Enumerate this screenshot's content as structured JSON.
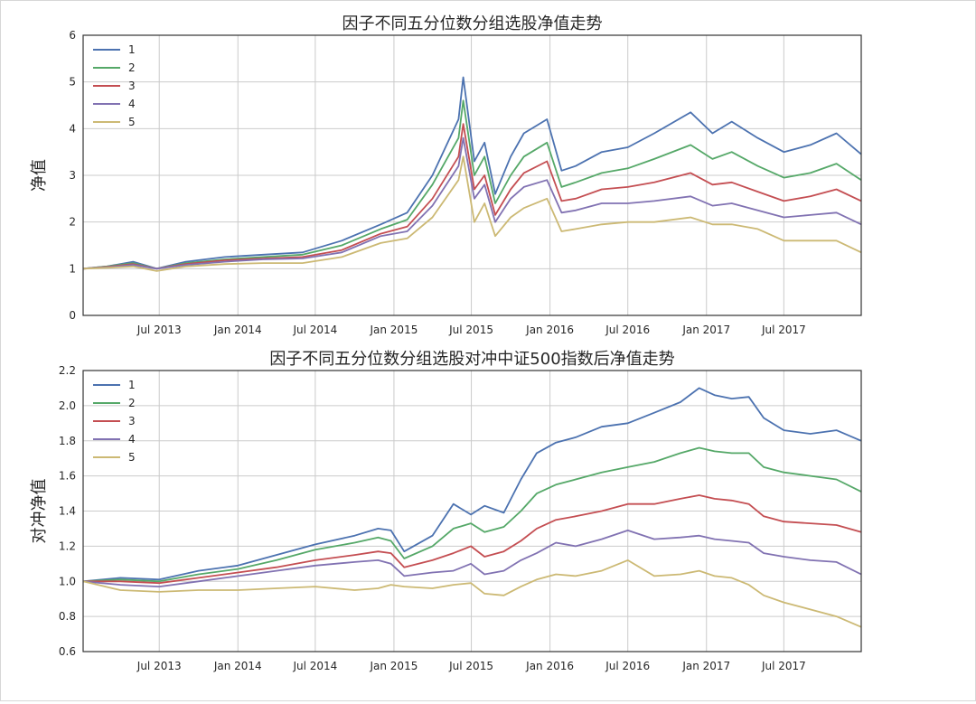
{
  "colors": {
    "series": [
      "#4c72b0",
      "#55a868",
      "#c44e52",
      "#8172b2",
      "#ccb974"
    ],
    "grid": "#cbcbcb",
    "axis": "#333333",
    "text": "#262626"
  },
  "chart_data": [
    {
      "type": "line",
      "title": "因子不同五分位数分组选股净值走势",
      "xlabel": "",
      "ylabel": "净值",
      "xlim": [
        "2013-01-04",
        "2017-12-29"
      ],
      "ylim": [
        0,
        6
      ],
      "yticks": [
        "0",
        "1",
        "2",
        "3",
        "4",
        "5",
        "6"
      ],
      "xticks": [
        {
          "date": "2013-07-01",
          "label": "Jul 2013"
        },
        {
          "date": "2014-01-01",
          "label": "Jan 2014"
        },
        {
          "date": "2014-07-01",
          "label": "Jul 2014"
        },
        {
          "date": "2015-01-01",
          "label": "Jan 2015"
        },
        {
          "date": "2015-07-01",
          "label": "Jul 2015"
        },
        {
          "date": "2016-01-01",
          "label": "Jan 2016"
        },
        {
          "date": "2016-07-01",
          "label": "Jul 2016"
        },
        {
          "date": "2017-01-01",
          "label": "Jan 2017"
        },
        {
          "date": "2017-07-01",
          "label": "Jul 2017"
        }
      ],
      "grid": true,
      "legend": "top-left",
      "series": [
        {
          "name": "1",
          "x": [
            "2013-01-04",
            "2013-03-01",
            "2013-05-01",
            "2013-06-25",
            "2013-09-01",
            "2013-12-01",
            "2014-03-01",
            "2014-06-01",
            "2014-09-01",
            "2014-12-01",
            "2015-02-01",
            "2015-04-01",
            "2015-06-01",
            "2015-06-12",
            "2015-07-08",
            "2015-08-01",
            "2015-08-26",
            "2015-10-01",
            "2015-11-01",
            "2015-12-25",
            "2016-01-28",
            "2016-03-01",
            "2016-05-01",
            "2016-07-01",
            "2016-09-01",
            "2016-11-25",
            "2017-01-15",
            "2017-03-01",
            "2017-05-01",
            "2017-07-01",
            "2017-09-01",
            "2017-11-01",
            "2017-12-29"
          ],
          "values": [
            1.0,
            1.05,
            1.15,
            1.0,
            1.15,
            1.25,
            1.3,
            1.35,
            1.6,
            1.95,
            2.2,
            3.0,
            4.2,
            5.1,
            3.3,
            3.7,
            2.6,
            3.4,
            3.9,
            4.2,
            3.1,
            3.2,
            3.5,
            3.6,
            3.9,
            4.35,
            3.9,
            4.15,
            3.8,
            3.5,
            3.65,
            3.9,
            3.45
          ]
        },
        {
          "name": "2",
          "x": [
            "2013-01-04",
            "2013-03-01",
            "2013-05-01",
            "2013-06-25",
            "2013-09-01",
            "2013-12-01",
            "2014-03-01",
            "2014-06-01",
            "2014-09-01",
            "2014-12-01",
            "2015-02-01",
            "2015-04-01",
            "2015-06-01",
            "2015-06-12",
            "2015-07-08",
            "2015-08-01",
            "2015-08-26",
            "2015-10-01",
            "2015-11-01",
            "2015-12-25",
            "2016-01-28",
            "2016-03-01",
            "2016-05-01",
            "2016-07-01",
            "2016-09-01",
            "2016-11-25",
            "2017-01-15",
            "2017-03-01",
            "2017-05-01",
            "2017-07-01",
            "2017-09-01",
            "2017-11-01",
            "2017-12-29"
          ],
          "values": [
            1.0,
            1.05,
            1.12,
            1.0,
            1.12,
            1.2,
            1.25,
            1.3,
            1.5,
            1.85,
            2.05,
            2.8,
            3.8,
            4.6,
            3.0,
            3.4,
            2.4,
            3.0,
            3.4,
            3.7,
            2.75,
            2.85,
            3.05,
            3.15,
            3.35,
            3.65,
            3.35,
            3.5,
            3.2,
            2.95,
            3.05,
            3.25,
            2.9
          ]
        },
        {
          "name": "3",
          "x": [
            "2013-01-04",
            "2013-03-01",
            "2013-05-01",
            "2013-06-25",
            "2013-09-01",
            "2013-12-01",
            "2014-03-01",
            "2014-06-01",
            "2014-09-01",
            "2014-12-01",
            "2015-02-01",
            "2015-04-01",
            "2015-06-01",
            "2015-06-12",
            "2015-07-08",
            "2015-08-01",
            "2015-08-26",
            "2015-10-01",
            "2015-11-01",
            "2015-12-25",
            "2016-01-28",
            "2016-03-01",
            "2016-05-01",
            "2016-07-01",
            "2016-09-01",
            "2016-11-25",
            "2017-01-15",
            "2017-03-01",
            "2017-05-01",
            "2017-07-01",
            "2017-09-01",
            "2017-11-01",
            "2017-12-29"
          ],
          "values": [
            1.0,
            1.04,
            1.1,
            1.0,
            1.1,
            1.18,
            1.22,
            1.25,
            1.4,
            1.75,
            1.9,
            2.5,
            3.4,
            4.1,
            2.7,
            3.0,
            2.15,
            2.7,
            3.05,
            3.3,
            2.45,
            2.5,
            2.7,
            2.75,
            2.85,
            3.05,
            2.8,
            2.85,
            2.65,
            2.45,
            2.55,
            2.7,
            2.45
          ]
        },
        {
          "name": "4",
          "x": [
            "2013-01-04",
            "2013-03-01",
            "2013-05-01",
            "2013-06-25",
            "2013-09-01",
            "2013-12-01",
            "2014-03-01",
            "2014-06-01",
            "2014-09-01",
            "2014-12-01",
            "2015-02-01",
            "2015-04-01",
            "2015-06-01",
            "2015-06-12",
            "2015-07-08",
            "2015-08-01",
            "2015-08-26",
            "2015-10-01",
            "2015-11-01",
            "2015-12-25",
            "2016-01-28",
            "2016-03-01",
            "2016-05-01",
            "2016-07-01",
            "2016-09-01",
            "2016-11-25",
            "2017-01-15",
            "2017-03-01",
            "2017-05-01",
            "2017-07-01",
            "2017-09-01",
            "2017-11-01",
            "2017-12-29"
          ],
          "values": [
            1.0,
            1.03,
            1.08,
            1.0,
            1.08,
            1.15,
            1.2,
            1.22,
            1.35,
            1.7,
            1.8,
            2.35,
            3.2,
            3.8,
            2.5,
            2.8,
            2.0,
            2.5,
            2.75,
            2.9,
            2.2,
            2.25,
            2.4,
            2.4,
            2.45,
            2.55,
            2.35,
            2.4,
            2.25,
            2.1,
            2.15,
            2.2,
            1.95
          ]
        },
        {
          "name": "5",
          "x": [
            "2013-01-04",
            "2013-03-01",
            "2013-05-01",
            "2013-06-25",
            "2013-09-01",
            "2013-12-01",
            "2014-03-01",
            "2014-06-01",
            "2014-09-01",
            "2014-12-01",
            "2015-02-01",
            "2015-04-01",
            "2015-06-01",
            "2015-06-12",
            "2015-07-08",
            "2015-08-01",
            "2015-08-26",
            "2015-10-01",
            "2015-11-01",
            "2015-12-25",
            "2016-01-28",
            "2016-03-01",
            "2016-05-01",
            "2016-07-01",
            "2016-09-01",
            "2016-11-25",
            "2017-01-15",
            "2017-03-01",
            "2017-05-01",
            "2017-07-01",
            "2017-09-01",
            "2017-11-01",
            "2017-12-29"
          ],
          "values": [
            1.0,
            1.02,
            1.05,
            0.95,
            1.05,
            1.1,
            1.12,
            1.12,
            1.25,
            1.55,
            1.65,
            2.1,
            2.9,
            3.4,
            2.0,
            2.4,
            1.7,
            2.1,
            2.3,
            2.5,
            1.8,
            1.85,
            1.95,
            2.0,
            2.0,
            2.1,
            1.95,
            1.95,
            1.85,
            1.6,
            1.6,
            1.6,
            1.35
          ]
        }
      ]
    },
    {
      "type": "line",
      "title": "因子不同五分位数分组选股对冲中证500指数后净值走势",
      "xlabel": "",
      "ylabel": "对冲净值",
      "xlim": [
        "2013-01-04",
        "2017-12-29"
      ],
      "ylim": [
        0.6,
        2.2
      ],
      "yticks": [
        "0.6",
        "0.8",
        "1.0",
        "1.2",
        "1.4",
        "1.6",
        "1.8",
        "2.0",
        "2.2"
      ],
      "xticks": [
        {
          "date": "2013-07-01",
          "label": "Jul 2013"
        },
        {
          "date": "2014-01-01",
          "label": "Jan 2014"
        },
        {
          "date": "2014-07-01",
          "label": "Jul 2014"
        },
        {
          "date": "2015-01-01",
          "label": "Jan 2015"
        },
        {
          "date": "2015-07-01",
          "label": "Jul 2015"
        },
        {
          "date": "2016-01-01",
          "label": "Jan 2016"
        },
        {
          "date": "2016-07-01",
          "label": "Jul 2016"
        },
        {
          "date": "2017-01-01",
          "label": "Jan 2017"
        },
        {
          "date": "2017-07-01",
          "label": "Jul 2017"
        }
      ],
      "grid": true,
      "legend": "top-left",
      "series": [
        {
          "name": "1",
          "x": [
            "2013-01-04",
            "2013-04-01",
            "2013-07-01",
            "2013-10-01",
            "2014-01-01",
            "2014-04-01",
            "2014-07-01",
            "2014-10-01",
            "2014-11-25",
            "2014-12-25",
            "2015-01-25",
            "2015-04-01",
            "2015-05-20",
            "2015-06-30",
            "2015-08-01",
            "2015-09-15",
            "2015-10-25",
            "2015-12-01",
            "2016-01-15",
            "2016-03-01",
            "2016-05-01",
            "2016-07-01",
            "2016-09-01",
            "2016-11-01",
            "2016-12-15",
            "2017-01-20",
            "2017-03-01",
            "2017-04-10",
            "2017-05-15",
            "2017-07-01",
            "2017-09-01",
            "2017-11-01",
            "2017-12-29"
          ],
          "values": [
            1.0,
            1.02,
            1.01,
            1.06,
            1.09,
            1.15,
            1.21,
            1.26,
            1.3,
            1.29,
            1.17,
            1.26,
            1.44,
            1.38,
            1.43,
            1.39,
            1.58,
            1.73,
            1.79,
            1.82,
            1.88,
            1.9,
            1.96,
            2.02,
            2.1,
            2.06,
            2.04,
            2.05,
            1.93,
            1.86,
            1.84,
            1.86,
            1.8
          ]
        },
        {
          "name": "2",
          "x": [
            "2013-01-04",
            "2013-04-01",
            "2013-07-01",
            "2013-10-01",
            "2014-01-01",
            "2014-04-01",
            "2014-07-01",
            "2014-10-01",
            "2014-11-25",
            "2014-12-25",
            "2015-01-25",
            "2015-04-01",
            "2015-05-20",
            "2015-06-30",
            "2015-08-01",
            "2015-09-15",
            "2015-10-25",
            "2015-12-01",
            "2016-01-15",
            "2016-03-01",
            "2016-05-01",
            "2016-07-01",
            "2016-09-01",
            "2016-11-01",
            "2016-12-15",
            "2017-01-20",
            "2017-03-01",
            "2017-04-10",
            "2017-05-15",
            "2017-07-01",
            "2017-09-01",
            "2017-11-01",
            "2017-12-29"
          ],
          "values": [
            1.0,
            1.01,
            1.0,
            1.04,
            1.07,
            1.12,
            1.18,
            1.22,
            1.25,
            1.23,
            1.13,
            1.2,
            1.3,
            1.33,
            1.28,
            1.31,
            1.4,
            1.5,
            1.55,
            1.58,
            1.62,
            1.65,
            1.68,
            1.73,
            1.76,
            1.74,
            1.73,
            1.73,
            1.65,
            1.62,
            1.6,
            1.58,
            1.51
          ]
        },
        {
          "name": "3",
          "x": [
            "2013-01-04",
            "2013-04-01",
            "2013-07-01",
            "2013-10-01",
            "2014-01-01",
            "2014-04-01",
            "2014-07-01",
            "2014-10-01",
            "2014-11-25",
            "2014-12-25",
            "2015-01-25",
            "2015-04-01",
            "2015-05-20",
            "2015-06-30",
            "2015-08-01",
            "2015-09-15",
            "2015-10-25",
            "2015-12-01",
            "2016-01-15",
            "2016-03-01",
            "2016-05-01",
            "2016-07-01",
            "2016-09-01",
            "2016-11-01",
            "2016-12-15",
            "2017-01-20",
            "2017-03-01",
            "2017-04-10",
            "2017-05-15",
            "2017-07-01",
            "2017-09-01",
            "2017-11-01",
            "2017-12-29"
          ],
          "values": [
            1.0,
            1.0,
            0.99,
            1.02,
            1.05,
            1.08,
            1.12,
            1.15,
            1.17,
            1.16,
            1.08,
            1.12,
            1.16,
            1.2,
            1.14,
            1.17,
            1.23,
            1.3,
            1.35,
            1.37,
            1.4,
            1.44,
            1.44,
            1.47,
            1.49,
            1.47,
            1.46,
            1.44,
            1.37,
            1.34,
            1.33,
            1.32,
            1.28
          ]
        },
        {
          "name": "4",
          "x": [
            "2013-01-04",
            "2013-04-01",
            "2013-07-01",
            "2013-10-01",
            "2014-01-01",
            "2014-04-01",
            "2014-07-01",
            "2014-10-01",
            "2014-11-25",
            "2014-12-25",
            "2015-01-25",
            "2015-04-01",
            "2015-05-20",
            "2015-06-30",
            "2015-08-01",
            "2015-09-15",
            "2015-10-25",
            "2015-12-01",
            "2016-01-15",
            "2016-03-01",
            "2016-05-01",
            "2016-07-01",
            "2016-09-01",
            "2016-11-01",
            "2016-12-15",
            "2017-01-20",
            "2017-03-01",
            "2017-04-10",
            "2017-05-15",
            "2017-07-01",
            "2017-09-01",
            "2017-11-01",
            "2017-12-29"
          ],
          "values": [
            1.0,
            0.98,
            0.97,
            1.0,
            1.03,
            1.06,
            1.09,
            1.11,
            1.12,
            1.1,
            1.03,
            1.05,
            1.06,
            1.1,
            1.04,
            1.06,
            1.12,
            1.16,
            1.22,
            1.2,
            1.24,
            1.29,
            1.24,
            1.25,
            1.26,
            1.24,
            1.23,
            1.22,
            1.16,
            1.14,
            1.12,
            1.11,
            1.04
          ]
        },
        {
          "name": "5",
          "x": [
            "2013-01-04",
            "2013-04-01",
            "2013-07-01",
            "2013-10-01",
            "2014-01-01",
            "2014-04-01",
            "2014-07-01",
            "2014-10-01",
            "2014-11-25",
            "2014-12-25",
            "2015-01-25",
            "2015-04-01",
            "2015-05-20",
            "2015-06-30",
            "2015-08-01",
            "2015-09-15",
            "2015-10-25",
            "2015-12-01",
            "2016-01-15",
            "2016-03-01",
            "2016-05-01",
            "2016-07-01",
            "2016-09-01",
            "2016-11-01",
            "2016-12-15",
            "2017-01-20",
            "2017-03-01",
            "2017-04-10",
            "2017-05-15",
            "2017-07-01",
            "2017-09-01",
            "2017-11-01",
            "2017-12-29"
          ],
          "values": [
            1.0,
            0.95,
            0.94,
            0.95,
            0.95,
            0.96,
            0.97,
            0.95,
            0.96,
            0.98,
            0.97,
            0.96,
            0.98,
            0.99,
            0.93,
            0.92,
            0.97,
            1.01,
            1.04,
            1.03,
            1.06,
            1.12,
            1.03,
            1.04,
            1.06,
            1.03,
            1.02,
            0.98,
            0.92,
            0.88,
            0.84,
            0.8,
            0.74
          ]
        }
      ]
    }
  ]
}
